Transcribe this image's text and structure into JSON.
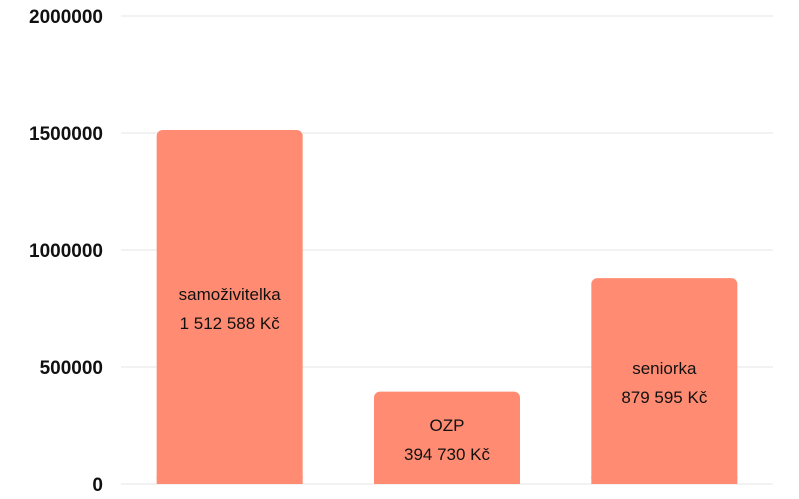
{
  "chart_data": {
    "type": "bar",
    "categories": [
      "samoživitelka",
      "OZP",
      "seniorka"
    ],
    "values": [
      1512588,
      394730,
      879595
    ],
    "data_labels": [
      "1 512 588 Kč",
      "394 730 Kč",
      "879 595 Kč"
    ],
    "ylim": [
      0,
      2000000
    ],
    "yticks": [
      0,
      500000,
      1000000,
      1500000,
      2000000
    ],
    "ytick_labels": [
      "0",
      "500000",
      "1000000",
      "1500000",
      "2000000"
    ],
    "grid": true,
    "legend": "none",
    "bar_color": "#ff8c72",
    "title": "",
    "xlabel": "",
    "ylabel": ""
  }
}
